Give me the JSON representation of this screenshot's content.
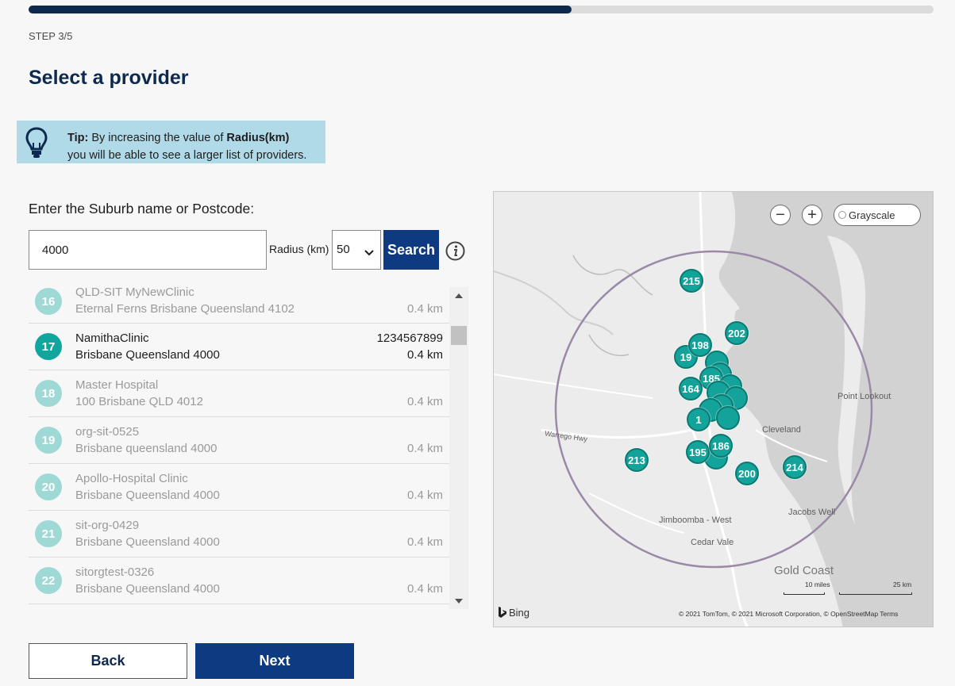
{
  "progress": {
    "fraction": 0.6
  },
  "step": "STEP 3/5",
  "title": "Select a provider",
  "tip": {
    "icon": "lightbulb-icon",
    "prefix": "Tip:",
    "text_before": " By increasing the value of ",
    "highlight": "Radius(km)",
    "text_after": "you will be able to see a larger list of providers."
  },
  "search": {
    "label": "Enter the Suburb name or Postcode:",
    "value": "4000",
    "radius_label": "Radius (km)",
    "radius_value": "50",
    "button_label": "Search",
    "info_icon": "info-icon"
  },
  "providers": [
    {
      "num": "16",
      "name": "QLD-SIT MyNewClinic",
      "address": "Eternal Ferns Brisbane Queensland 4102",
      "phone": "",
      "distance": "0.4 km",
      "selected": false
    },
    {
      "num": "17",
      "name": "NamithaClinic",
      "address": "Brisbane Queensland 4000",
      "phone": "1234567899",
      "distance": "0.4 km",
      "selected": true
    },
    {
      "num": "18",
      "name": "Master Hospital",
      "address": "100 Brisbane QLD 4012",
      "phone": "",
      "distance": "0.4 km",
      "selected": false
    },
    {
      "num": "19",
      "name": "org-sit-0525",
      "address": "Brisbane queensland 4000",
      "phone": "",
      "distance": "0.4 km",
      "selected": false
    },
    {
      "num": "20",
      "name": "Apollo-Hospital Clinic",
      "address": "Brisbane Queensland 4000",
      "phone": "",
      "distance": "0.4 km",
      "selected": false
    },
    {
      "num": "21",
      "name": "sit-org-0429",
      "address": "Brisbane Queensland 4000",
      "phone": "",
      "distance": "0.4 km",
      "selected": false
    },
    {
      "num": "22",
      "name": "sitorgtest-0326",
      "address": "Brisbane Queensland 4000",
      "phone": "",
      "distance": "0.4 km",
      "selected": false
    }
  ],
  "map": {
    "zoom_out": "−",
    "zoom_in": "+",
    "style_label": "Grayscale",
    "clusters": [
      "215",
      "202",
      "198",
      "19",
      "185",
      "164",
      "1",
      "195",
      "186",
      "213",
      "200",
      "214"
    ],
    "labels": {
      "point_lookout": "Point Lookout",
      "cleveland": "Cleveland",
      "jacobs_well": "Jacobs Well",
      "jimboomba": "Jimboomba - West",
      "cedar_vale": "Cedar Vale",
      "gold_coast": "Gold Coast",
      "warrego": "Warrego Hwy"
    },
    "brand": "Bing",
    "copyright": "© 2021 TomTom, © 2021 Microsoft Corporation, © OpenStreetMap  Terms",
    "scale_miles": "10 miles",
    "scale_km": "25 km",
    "colors": {
      "cluster": "#14a39a",
      "radius_circle": "#9a8aa8",
      "center_marker": "#a03a8e"
    }
  },
  "nav": {
    "back_label": "Back",
    "next_label": "Next"
  }
}
